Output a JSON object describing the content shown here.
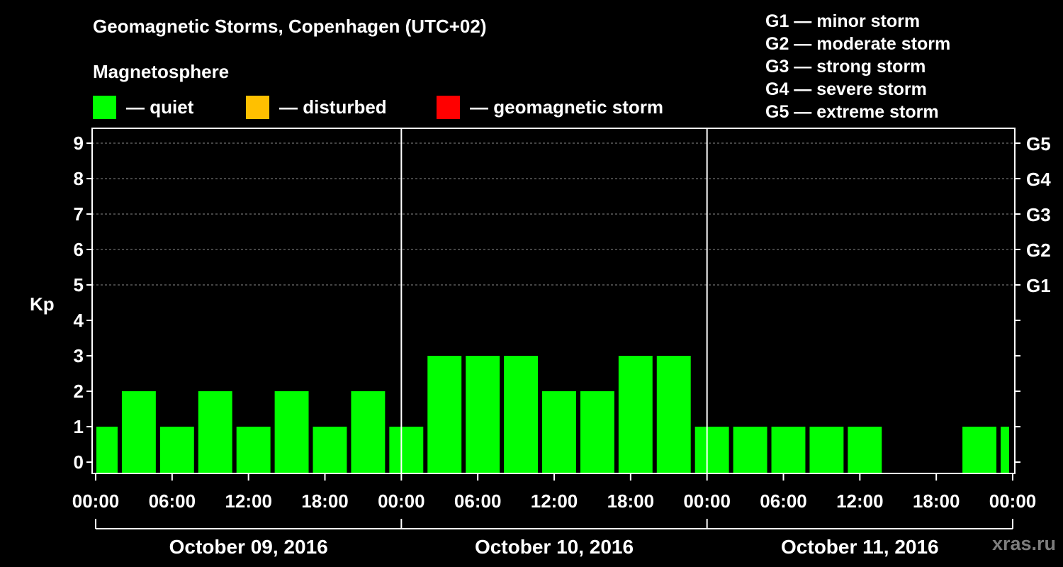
{
  "header": {
    "title": "Geomagnetic Storms, Copenhagen (UTC+02)",
    "subtitle": "Magnetosphere"
  },
  "legend": [
    {
      "label": "— quiet",
      "color": "#00ff00"
    },
    {
      "label": "— disturbed",
      "color": "#ffc000"
    },
    {
      "label": "— geomagnetic storm",
      "color": "#ff0000"
    }
  ],
  "storm_scale": [
    "G1 — minor storm",
    "G2 — moderate storm",
    "G3 — strong storm",
    "G4 — severe storm",
    "G5 — extreme storm"
  ],
  "watermark": "xras.ru",
  "chart_data": {
    "type": "bar",
    "ylabel": "Kp",
    "ylim": [
      0,
      9
    ],
    "yticks": [
      "0",
      "1",
      "2",
      "3",
      "4",
      "5",
      "6",
      "7",
      "8",
      "9"
    ],
    "right_ticks": [
      {
        "kp": 5,
        "label": "G1"
      },
      {
        "kp": 6,
        "label": "G2"
      },
      {
        "kp": 7,
        "label": "G3"
      },
      {
        "kp": 8,
        "label": "G4"
      },
      {
        "kp": 9,
        "label": "G5"
      }
    ],
    "grid": "dashed horizontal at Kp 5-9",
    "xtick_labels": [
      "00:00",
      "06:00",
      "12:00",
      "18:00",
      "00:00",
      "06:00",
      "12:00",
      "18:00",
      "00:00",
      "06:00",
      "12:00",
      "18:00",
      "00:00"
    ],
    "days": [
      "October 09, 2016",
      "October 10, 2016",
      "October 11, 2016"
    ],
    "bar_color": "#00ff00",
    "bars": [
      {
        "start_h": 0,
        "end_h": 2,
        "kp": 1
      },
      {
        "start_h": 2,
        "end_h": 5,
        "kp": 2
      },
      {
        "start_h": 5,
        "end_h": 8,
        "kp": 1
      },
      {
        "start_h": 8,
        "end_h": 11,
        "kp": 2
      },
      {
        "start_h": 11,
        "end_h": 14,
        "kp": 1
      },
      {
        "start_h": 14,
        "end_h": 17,
        "kp": 2
      },
      {
        "start_h": 17,
        "end_h": 20,
        "kp": 1
      },
      {
        "start_h": 20,
        "end_h": 23,
        "kp": 2
      },
      {
        "start_h": 23,
        "end_h": 26,
        "kp": 1
      },
      {
        "start_h": 26,
        "end_h": 29,
        "kp": 3
      },
      {
        "start_h": 29,
        "end_h": 32,
        "kp": 3
      },
      {
        "start_h": 32,
        "end_h": 35,
        "kp": 3
      },
      {
        "start_h": 35,
        "end_h": 38,
        "kp": 2
      },
      {
        "start_h": 38,
        "end_h": 41,
        "kp": 2
      },
      {
        "start_h": 41,
        "end_h": 44,
        "kp": 3
      },
      {
        "start_h": 44,
        "end_h": 47,
        "kp": 3
      },
      {
        "start_h": 47,
        "end_h": 50,
        "kp": 1
      },
      {
        "start_h": 50,
        "end_h": 53,
        "kp": 1
      },
      {
        "start_h": 53,
        "end_h": 56,
        "kp": 1
      },
      {
        "start_h": 56,
        "end_h": 59,
        "kp": 1
      },
      {
        "start_h": 59,
        "end_h": 62,
        "kp": 1
      },
      {
        "start_h": 68,
        "end_h": 71,
        "kp": 1
      },
      {
        "start_h": 71,
        "end_h": 72,
        "kp": 1
      }
    ]
  }
}
